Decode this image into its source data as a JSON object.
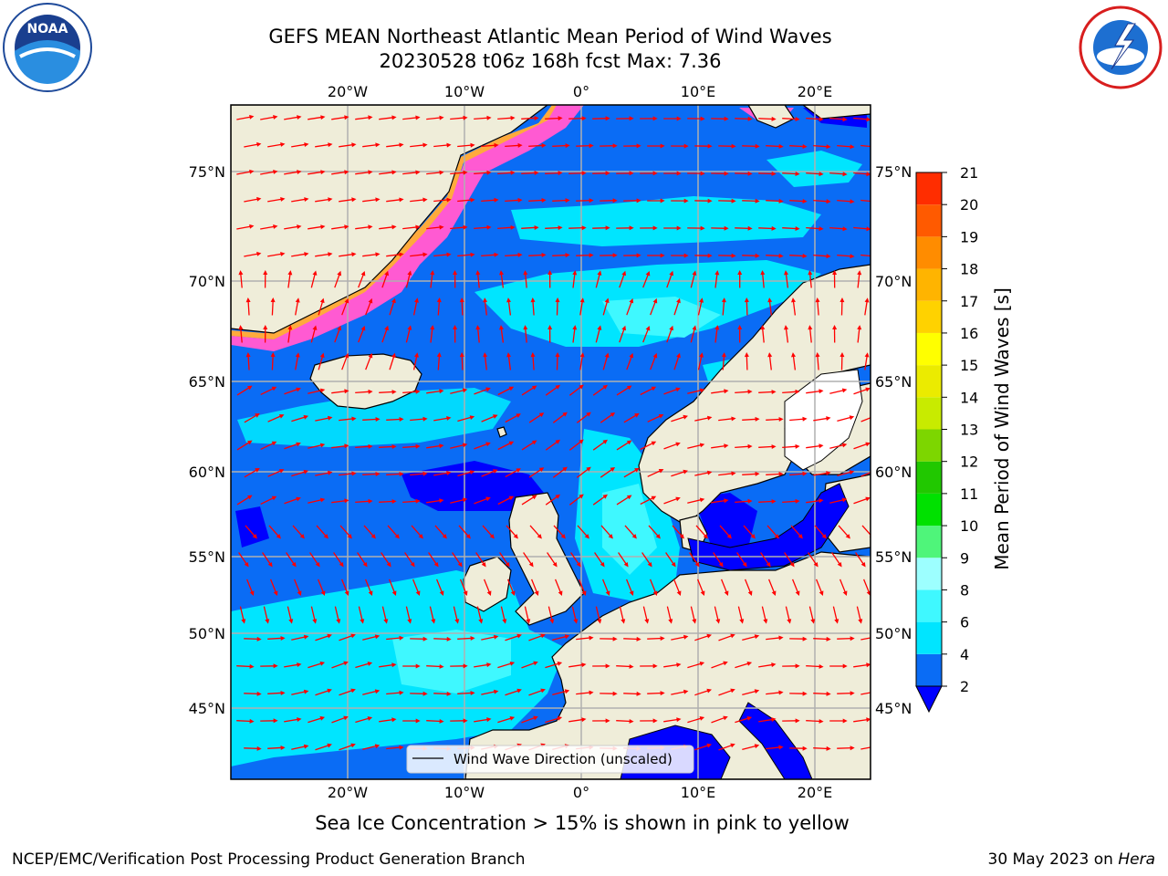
{
  "title_line1": "GEFS MEAN Northeast Atlantic Mean Period of Wind Waves",
  "title_line2": "20230528 t06z 168h fcst   Max: 7.36",
  "footnote": "Sea Ice Concentration > 15% is shown in pink to yellow",
  "credit": "NCEP/EMC/Verification Post Processing Product Generation Branch",
  "date_text": "30 May 2023 on ",
  "host": "Hera",
  "legend_label": "Wind Wave Direction (unscaled)",
  "colorbar": {
    "label": "Mean Period of Wind Waves [s]",
    "ticks": [
      "2",
      "4",
      "6",
      "8",
      "9",
      "10",
      "11",
      "12",
      "13",
      "14",
      "15",
      "16",
      "17",
      "18",
      "19",
      "20",
      "21"
    ],
    "colors": [
      "#0a6cf5",
      "#00e5ff",
      "#3ff8ff",
      "#9dffff",
      "#4ff57a",
      "#00e100",
      "#21c800",
      "#7dd600",
      "#c8eb00",
      "#ebeb00",
      "#ffff00",
      "#ffd200",
      "#ffb400",
      "#ff8c00",
      "#ff5a00",
      "#ff2d00"
    ],
    "under_color": "#0000ff"
  },
  "axes": {
    "lon_labels": [
      "20°W",
      "10°W",
      "0°",
      "10°E",
      "20°E"
    ],
    "lat_labels": [
      "75°N",
      "70°N",
      "65°N",
      "60°N",
      "55°N",
      "50°N",
      "45°N"
    ]
  },
  "colors": {
    "land": "#efedd9",
    "ocean_low": "#0a6cf5",
    "ocean_mid": "#00e5ff",
    "ocean_min": "#0000ff",
    "arrow": "#ff0000",
    "grid": "#b0b0b0"
  }
}
